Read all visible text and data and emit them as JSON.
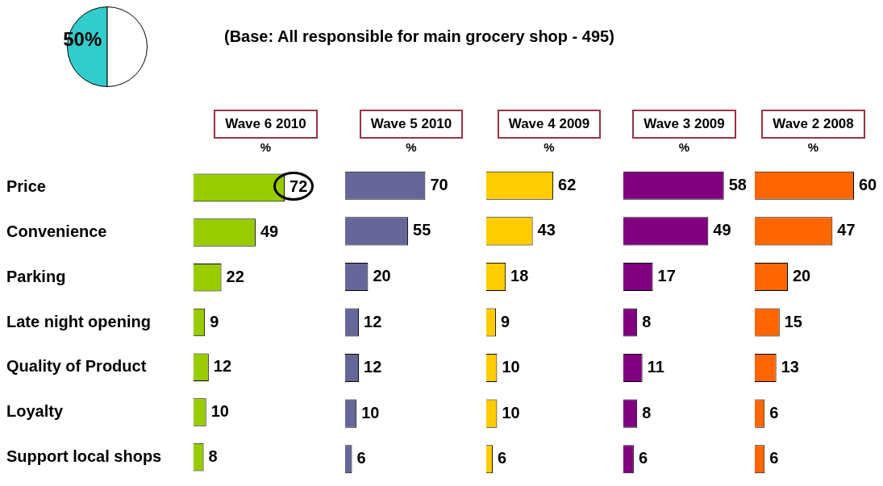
{
  "chart_data": [
    {
      "type": "pie",
      "categories": [
        null,
        null
      ],
      "values": [
        50,
        50
      ],
      "colors": [
        "#33cccc",
        "#ffffff"
      ],
      "value_labels": [
        "50%",
        null
      ],
      "legend": false,
      "annotations": [
        "(Base: All responsible for main grocery shop - 495)"
      ]
    },
    {
      "type": "bar",
      "orientation": "horizontal",
      "title": "Wave 6 2010",
      "subtitle": "%",
      "categories": [
        "Price",
        "Convenience",
        "Parking",
        "Late night opening",
        "Quality of Product",
        "Loyalty",
        "Support local shops"
      ],
      "values": [
        72,
        49,
        22,
        9,
        12,
        10,
        8
      ],
      "color": "#99cc00",
      "data_labels": true,
      "grid": false,
      "legend": false,
      "tick_labels": "y"
    },
    {
      "type": "bar",
      "orientation": "horizontal",
      "title": "Wave 5 2010",
      "subtitle": "%",
      "categories": [
        null,
        null,
        null,
        null,
        null,
        null,
        null
      ],
      "values": [
        70,
        55,
        20,
        12,
        12,
        10,
        6
      ],
      "color": "#666699",
      "data_labels": true,
      "grid": false,
      "legend": false,
      "tick_labels": false
    },
    {
      "type": "bar",
      "orientation": "horizontal",
      "title": "Wave 4 2009",
      "subtitle": "%",
      "categories": [
        null,
        null,
        null,
        null,
        null,
        null,
        null
      ],
      "values": [
        62,
        43,
        18,
        9,
        10,
        10,
        6
      ],
      "color": "#ffcc00",
      "data_labels": true,
      "grid": false,
      "legend": false,
      "tick_labels": false
    },
    {
      "type": "bar",
      "orientation": "horizontal",
      "title": "Wave 3 2009",
      "subtitle": "%",
      "categories": [
        null,
        null,
        null,
        null,
        null,
        null,
        null
      ],
      "values": [
        58,
        49,
        17,
        8,
        11,
        8,
        6
      ],
      "color": "#800080",
      "data_labels": true,
      "grid": false,
      "legend": false,
      "tick_labels": false
    },
    {
      "type": "bar",
      "orientation": "horizontal",
      "title": "Wave 2 2008",
      "subtitle": "%",
      "categories": [
        null,
        null,
        null,
        null,
        null,
        null,
        null
      ],
      "values": [
        60,
        47,
        20,
        15,
        13,
        6,
        6
      ],
      "color": "#ff6600",
      "data_labels": true,
      "grid": false,
      "legend": false,
      "tick_labels": false
    }
  ]
}
